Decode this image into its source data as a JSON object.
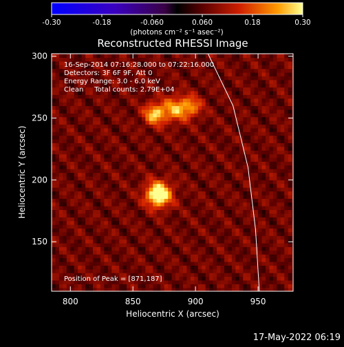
{
  "chart_data": {
    "type": "heatmap",
    "title": "Reconstructed RHESSI Image",
    "xlabel": "Heliocentric X (arcsec)",
    "ylabel": "Heliocentric Y (arcsec)",
    "xlim": [
      785,
      978
    ],
    "ylim": [
      110,
      302
    ],
    "x_ticks": [
      800,
      850,
      900,
      950
    ],
    "y_ticks": [
      150,
      200,
      250,
      300
    ],
    "colorbar": {
      "range": [
        -0.3,
        0.3
      ],
      "ticks": [
        "-0.30",
        "-0.18",
        "-0.060",
        "0.060",
        "0.18",
        "0.30"
      ],
      "unit_label": "(photons cm⁻² s⁻¹ asec⁻²)"
    },
    "annotations": [
      "16-Sep-2014 07:16:28.000 to 07:22:16.000",
      "Detectors: 3F 6F 9F, Att 0",
      "Energy Range: 3.0 - 6.0 keV",
      "Clean     Total counts: 2.79E+04"
    ],
    "peak_label": "Position of Peak = [871,187]",
    "peak_position": [
      871,
      187
    ],
    "sources": [
      {
        "x": 869,
        "y": 187,
        "intensity": 0.3,
        "sigma": 7
      },
      {
        "x": 866,
        "y": 252,
        "intensity": 0.2,
        "sigma": 6
      },
      {
        "x": 882,
        "y": 256,
        "intensity": 0.16,
        "sigma": 7
      },
      {
        "x": 895,
        "y": 258,
        "intensity": 0.14,
        "sigma": 6
      }
    ],
    "limb_curve": [
      [
        910,
        302
      ],
      [
        930,
        260
      ],
      [
        942,
        210
      ],
      [
        948,
        160
      ],
      [
        951,
        110
      ]
    ]
  },
  "footer": {
    "timestamp": "17-May-2022 06:19"
  },
  "colors": {
    "background": "#000000",
    "text": "#ffffff"
  }
}
